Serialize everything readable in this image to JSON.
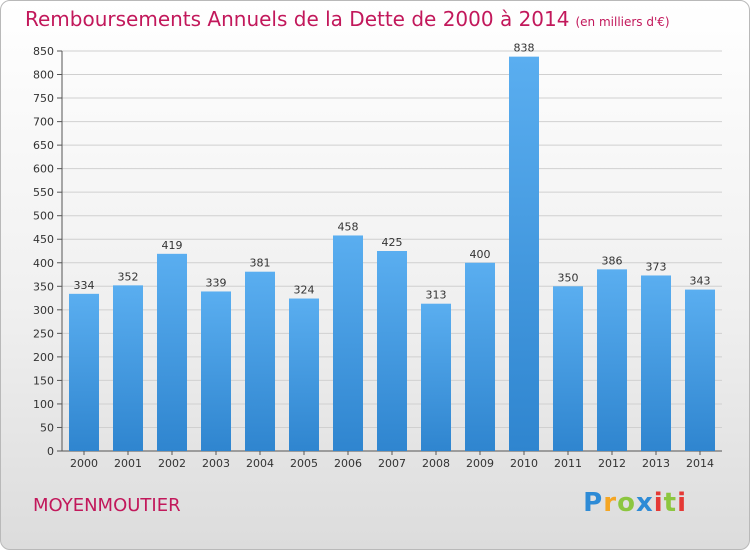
{
  "header": {
    "title": "Remboursements Annuels de la Dette de 2000 à 2014",
    "unit": "(en milliers d'€)"
  },
  "footer": {
    "commune": "MOYENMOUTIER",
    "logo_text": "Proxiti"
  },
  "colors": {
    "title": "#c2185b",
    "bar_top": "#5aaef0",
    "bar_bottom": "#2f85cf"
  },
  "chart_data": {
    "type": "bar",
    "title": "Remboursements Annuels de la Dette de 2000 à 2014",
    "categories": [
      "2000",
      "2001",
      "2002",
      "2003",
      "2004",
      "2005",
      "2006",
      "2007",
      "2008",
      "2009",
      "2010",
      "2011",
      "2012",
      "2013",
      "2014"
    ],
    "values": [
      334,
      352,
      419,
      339,
      381,
      324,
      458,
      425,
      313,
      400,
      838,
      350,
      386,
      373,
      343
    ],
    "ylim": [
      0,
      850
    ],
    "yticks": [
      0,
      50,
      100,
      150,
      200,
      250,
      300,
      350,
      400,
      450,
      500,
      550,
      600,
      650,
      700,
      750,
      800,
      850
    ],
    "grid": true,
    "legend": "none"
  }
}
